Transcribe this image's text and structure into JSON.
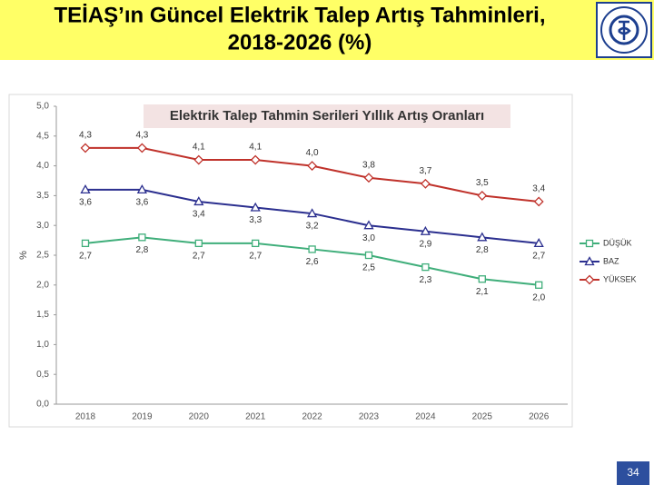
{
  "header": {
    "title": [
      "TEİAŞ’ın Güncel  Elektrik Talep Artış Tahminleri,",
      "2018-2026 (%)"
    ]
  },
  "chart_data": {
    "type": "line",
    "title": "Elektrik Talep Tahmin Serileri Yıllık Artış Oranları",
    "y_label": "%",
    "categories": [
      "2018",
      "2019",
      "2020",
      "2021",
      "2022",
      "2023",
      "2024",
      "2025",
      "2026"
    ],
    "series": [
      {
        "name": "DÜŞÜK",
        "color": "#3fae7a",
        "marker": "square",
        "values": [
          2.7,
          2.8,
          2.7,
          2.7,
          2.6,
          2.5,
          2.3,
          2.1,
          2.0
        ],
        "value_labels": [
          "2,7",
          "2,8",
          "2,7",
          "2,7",
          "2,6",
          "2,5",
          "2,3",
          "2,1",
          "2,0"
        ]
      },
      {
        "name": "BAZ",
        "color": "#2b2f8f",
        "marker": "triangle",
        "values": [
          3.6,
          3.6,
          3.4,
          3.3,
          3.2,
          3.0,
          2.9,
          2.8,
          2.7
        ],
        "value_labels": [
          "3,6",
          "3,6",
          "3,4",
          "3,3",
          "3,2",
          "3,0",
          "2,9",
          "2,8",
          "2,7"
        ]
      },
      {
        "name": "YÜKSEK",
        "color": "#c0322b",
        "marker": "diamond",
        "values": [
          4.3,
          4.3,
          4.1,
          4.1,
          4.0,
          3.8,
          3.7,
          3.5,
          3.4
        ],
        "value_labels": [
          "4,3",
          "4,3",
          "4,1",
          "4,1",
          "4,0",
          "3,8",
          "3,7",
          "3,5",
          "3,4"
        ]
      }
    ],
    "ylim": [
      0,
      5
    ],
    "yticks": [
      {
        "value": 0,
        "label": "0,0"
      },
      {
        "value": 0.5,
        "label": "0,5"
      },
      {
        "value": 1,
        "label": "1,0"
      },
      {
        "value": 1.5,
        "label": "1,5"
      },
      {
        "value": 2,
        "label": "2,0"
      },
      {
        "value": 2.5,
        "label": "2,5"
      },
      {
        "value": 3,
        "label": "3,0"
      },
      {
        "value": 3.5,
        "label": "3,5"
      },
      {
        "value": 4,
        "label": "4,0"
      },
      {
        "value": 4.5,
        "label": "4,5"
      },
      {
        "value": 5,
        "label": "5,0"
      }
    ],
    "grid": false
  },
  "page_number": "34"
}
